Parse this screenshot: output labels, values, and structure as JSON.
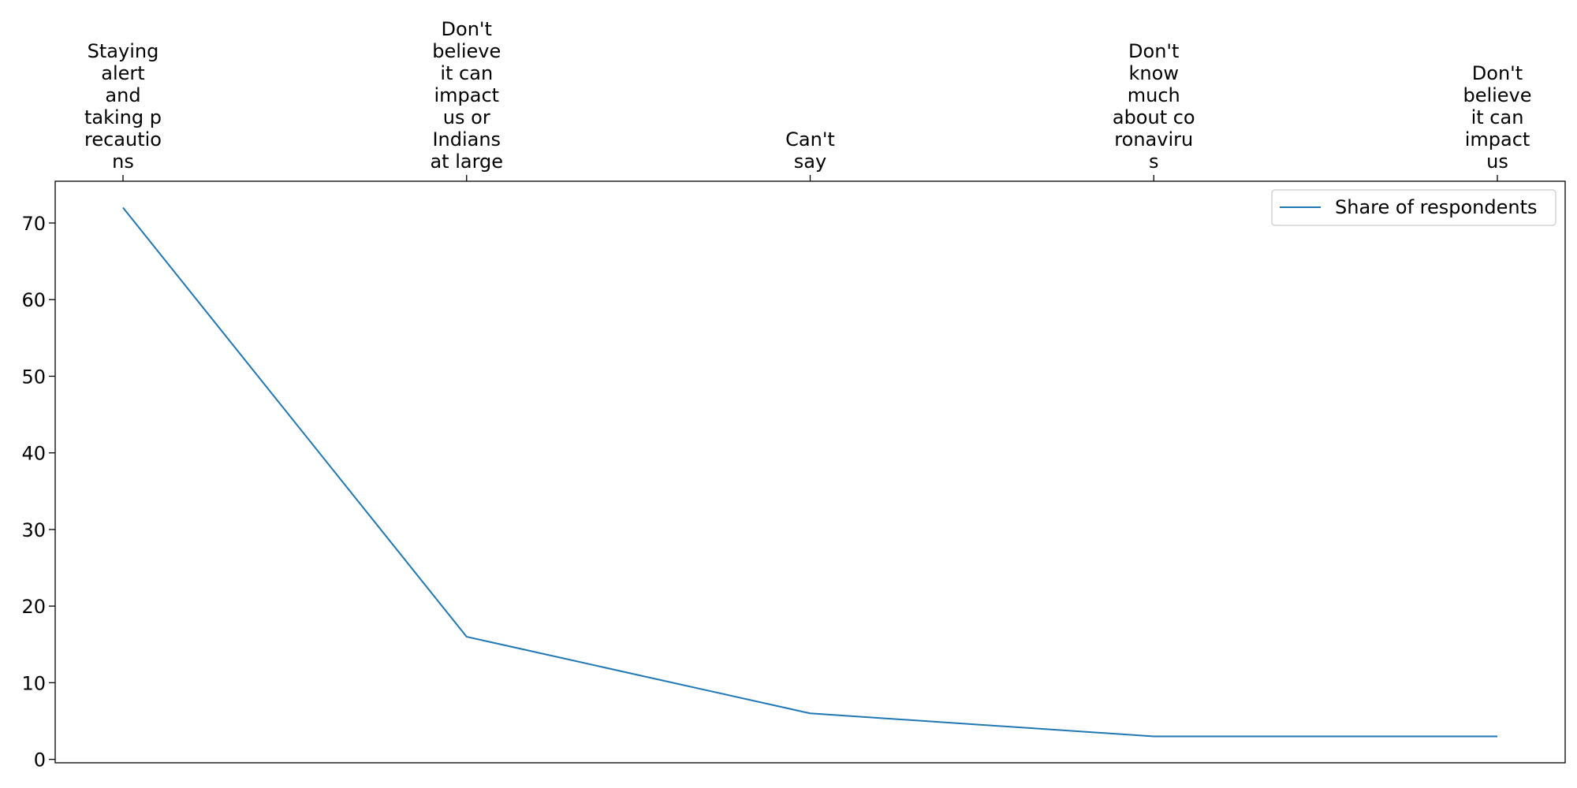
{
  "chart_data": {
    "type": "line",
    "categories": [
      [
        "Staying",
        "alert",
        "and",
        "taking p",
        "recautio",
        "ns"
      ],
      [
        "Don't",
        "believe",
        "it can",
        "impact",
        "us or",
        "Indians",
        "at large"
      ],
      [
        "Can't",
        "say"
      ],
      [
        "Don't",
        "know",
        "much",
        "about co",
        "ronaviru",
        "s"
      ],
      [
        "Don't",
        "believe",
        "it can",
        "impact",
        "us"
      ]
    ],
    "series": [
      {
        "name": "Share of respondents",
        "values": [
          72,
          16,
          6,
          3,
          3
        ],
        "color": "#1f77b4"
      }
    ],
    "yticks": [
      0,
      10,
      20,
      30,
      40,
      50,
      60,
      70
    ],
    "ylim": [
      -0.45,
      75.45
    ],
    "x_axis_position": "top",
    "legend_position": "top-right",
    "grid": false
  }
}
